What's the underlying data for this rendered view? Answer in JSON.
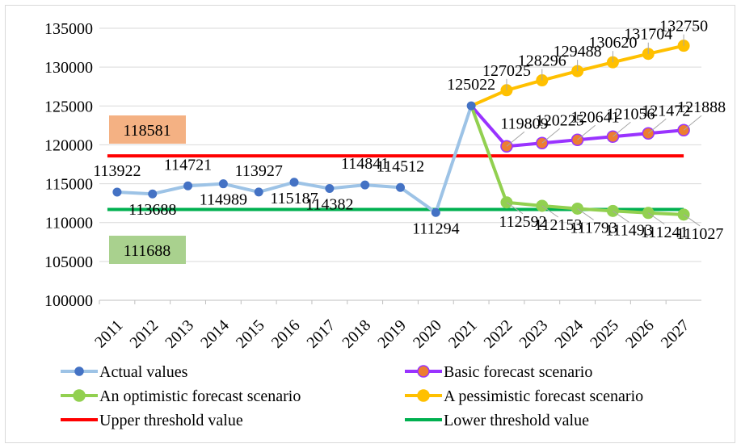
{
  "chart_data": {
    "type": "line",
    "categories": [
      "2011",
      "2012",
      "2013",
      "2014",
      "2015",
      "2016",
      "2017",
      "2018",
      "2019",
      "2020",
      "2021",
      "2022",
      "2023",
      "2024",
      "2025",
      "2026",
      "2027"
    ],
    "ylim": [
      100000,
      135000
    ],
    "y_ticks": [
      "100000",
      "105000",
      "110000",
      "115000",
      "120000",
      "125000",
      "130000",
      "135000"
    ],
    "grid": "horizontal",
    "legend_placement": "bottom",
    "series": [
      {
        "name": "Actual values",
        "color": "#9dc3e6",
        "marker": "#4472c4",
        "values": [
          113922,
          113688,
          114721,
          114989,
          113927,
          115187,
          114382,
          114841,
          114512,
          111294,
          125022,
          null,
          null,
          null,
          null,
          null,
          null
        ],
        "labels": [
          "113922",
          "113688",
          "114721",
          "114989",
          "113927",
          "115187",
          "114382",
          "114841",
          "114512",
          "111294",
          "125022",
          null,
          null,
          null,
          null,
          null,
          null
        ]
      },
      {
        "name": "Basic forecast scenario",
        "color": "#9933ff",
        "marker": "#ed7d31",
        "values": [
          null,
          null,
          null,
          null,
          null,
          null,
          null,
          null,
          null,
          null,
          125022,
          119809,
          120225,
          120641,
          121056,
          121472,
          121888
        ],
        "labels": [
          null,
          null,
          null,
          null,
          null,
          null,
          null,
          null,
          null,
          null,
          null,
          "119809",
          "120225",
          "120641",
          "121056",
          "121472",
          "121888"
        ]
      },
      {
        "name": "An optimistic forecast scenario",
        "color": "#92d050",
        "marker": "#92d050",
        "values": [
          null,
          null,
          null,
          null,
          null,
          null,
          null,
          null,
          null,
          null,
          125022,
          112592,
          112153,
          111793,
          111493,
          111241,
          111027
        ],
        "labels": [
          null,
          null,
          null,
          null,
          null,
          null,
          null,
          null,
          null,
          null,
          null,
          "112592",
          "112153",
          "111793",
          "111493",
          "111241",
          "111027"
        ]
      },
      {
        "name": "A pessimistic forecast scenario",
        "color": "#ffc000",
        "marker": "#ffc000",
        "values": [
          null,
          null,
          null,
          null,
          null,
          null,
          null,
          null,
          null,
          null,
          125022,
          127025,
          128296,
          129488,
          130620,
          131704,
          132750
        ],
        "labels": [
          null,
          null,
          null,
          null,
          null,
          null,
          null,
          null,
          null,
          null,
          null,
          "127025",
          "128296",
          "129488",
          "130620",
          "131704",
          "132750"
        ]
      },
      {
        "name": "Upper threshold value",
        "color": "#ff0000",
        "value": 118581,
        "label": "118581",
        "label_bg": "#f4b183"
      },
      {
        "name": "Lower threshold value",
        "color": "#00b050",
        "value": 111688,
        "label": "111688",
        "label_bg": "#a9d18e"
      }
    ]
  }
}
